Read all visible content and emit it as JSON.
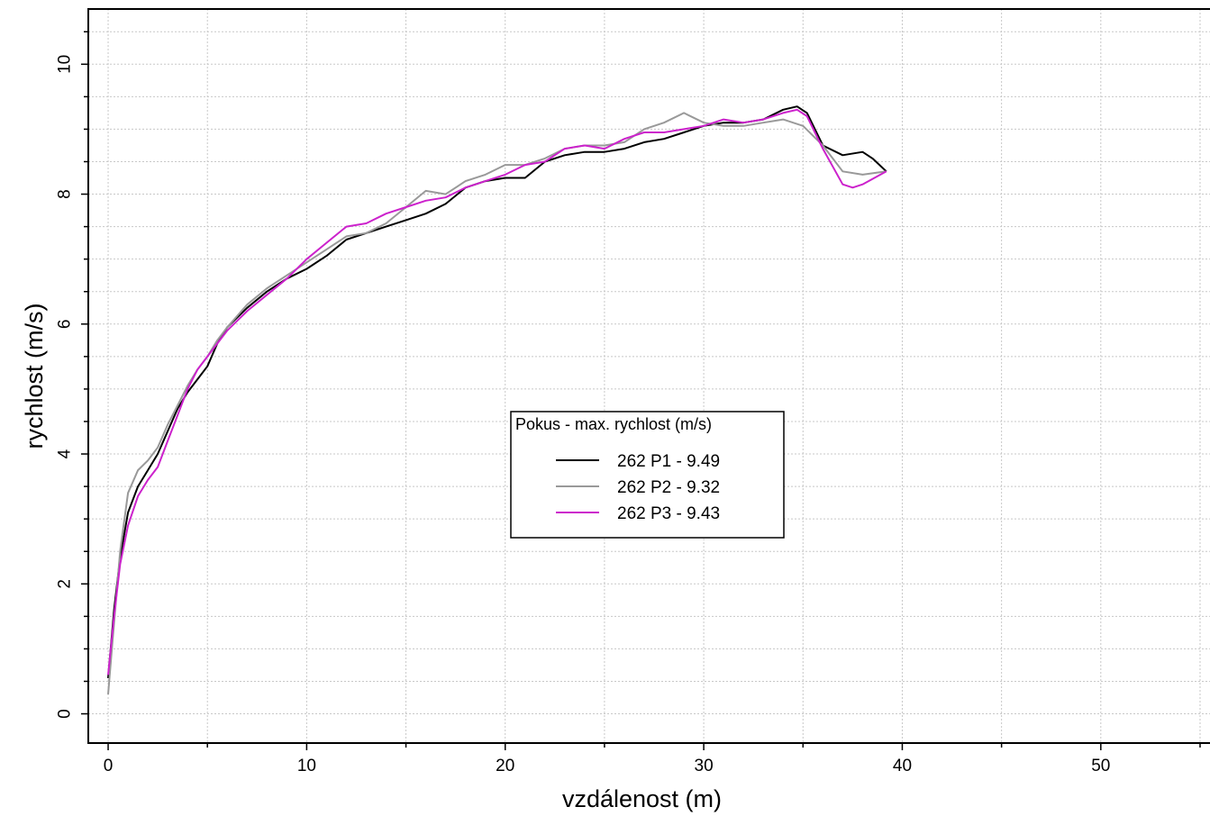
{
  "chart_data": {
    "type": "line",
    "title": "",
    "xlabel": "vzdálenost (m)",
    "ylabel": "rychlost (m/s)",
    "xlim": [
      -1,
      55.5
    ],
    "ylim": [
      -0.45,
      10.85
    ],
    "x_ticks": [
      0,
      10,
      20,
      30,
      40,
      50
    ],
    "y_ticks": [
      0,
      2,
      4,
      6,
      8,
      10
    ],
    "grid": true,
    "legend": {
      "title": "Pokus - max. rychlost (m/s)",
      "placement": "center"
    },
    "series": [
      {
        "name": "262 P1 - 9.49",
        "color": "#000000",
        "x": [
          0,
          0.3,
          0.6,
          1,
          1.5,
          2,
          2.5,
          3,
          3.5,
          4,
          4.5,
          5,
          5.5,
          6,
          7,
          8,
          9,
          10,
          11,
          12,
          13,
          14,
          15,
          16,
          17,
          18,
          19,
          20,
          21,
          22,
          23,
          24,
          25,
          26,
          27,
          28,
          29,
          30,
          31,
          32,
          33,
          34,
          34.7,
          35.2,
          36,
          37,
          38,
          38.5,
          39.2
        ],
        "values": [
          0.55,
          1.6,
          2.4,
          3.1,
          3.5,
          3.75,
          4.0,
          4.35,
          4.7,
          4.95,
          5.15,
          5.35,
          5.7,
          5.95,
          6.25,
          6.5,
          6.7,
          6.85,
          7.05,
          7.3,
          7.4,
          7.5,
          7.6,
          7.7,
          7.85,
          8.1,
          8.2,
          8.25,
          8.25,
          8.5,
          8.6,
          8.65,
          8.65,
          8.7,
          8.8,
          8.85,
          8.95,
          9.05,
          9.1,
          9.1,
          9.15,
          9.3,
          9.35,
          9.25,
          8.75,
          8.6,
          8.65,
          8.55,
          8.35
        ]
      },
      {
        "name": "262 P2 - 9.32",
        "color": "#999999",
        "x": [
          0,
          0.3,
          0.6,
          1,
          1.5,
          2,
          2.5,
          3,
          3.5,
          4,
          4.5,
          5,
          5.5,
          6,
          7,
          8,
          9,
          10,
          11,
          12,
          13,
          14,
          15,
          16,
          17,
          18,
          19,
          20,
          21,
          22,
          23,
          24,
          25,
          26,
          27,
          28,
          29,
          30,
          31,
          32,
          33,
          34,
          35,
          36,
          37,
          38,
          39.2
        ],
        "values": [
          0.3,
          1.4,
          2.5,
          3.4,
          3.75,
          3.9,
          4.1,
          4.45,
          4.75,
          5.05,
          5.3,
          5.5,
          5.75,
          5.95,
          6.3,
          6.55,
          6.75,
          6.95,
          7.15,
          7.35,
          7.4,
          7.55,
          7.8,
          8.05,
          8.0,
          8.2,
          8.3,
          8.45,
          8.45,
          8.55,
          8.7,
          8.75,
          8.75,
          8.8,
          9.0,
          9.1,
          9.25,
          9.1,
          9.05,
          9.05,
          9.1,
          9.15,
          9.05,
          8.75,
          8.35,
          8.3,
          8.35
        ]
      },
      {
        "name": "262 P3 - 9.43",
        "color": "#cc22cc",
        "x": [
          0,
          0.3,
          0.6,
          1,
          1.5,
          2,
          2.5,
          3,
          3.5,
          4,
          4.5,
          5,
          5.5,
          6,
          7,
          8,
          9,
          10,
          11,
          12,
          13,
          14,
          15,
          16,
          17,
          18,
          19,
          20,
          21,
          22,
          23,
          24,
          25,
          26,
          27,
          28,
          29,
          30,
          31,
          32,
          33,
          34,
          34.7,
          35.2,
          36,
          37,
          37.5,
          38,
          39.2
        ],
        "values": [
          0.6,
          1.5,
          2.3,
          2.9,
          3.35,
          3.6,
          3.8,
          4.2,
          4.6,
          5.0,
          5.3,
          5.5,
          5.7,
          5.9,
          6.2,
          6.45,
          6.7,
          7.0,
          7.25,
          7.5,
          7.55,
          7.7,
          7.8,
          7.9,
          7.95,
          8.1,
          8.2,
          8.3,
          8.45,
          8.5,
          8.7,
          8.75,
          8.7,
          8.85,
          8.95,
          8.95,
          9.0,
          9.05,
          9.15,
          9.1,
          9.15,
          9.25,
          9.3,
          9.2,
          8.7,
          8.15,
          8.1,
          8.15,
          8.35
        ]
      }
    ]
  }
}
